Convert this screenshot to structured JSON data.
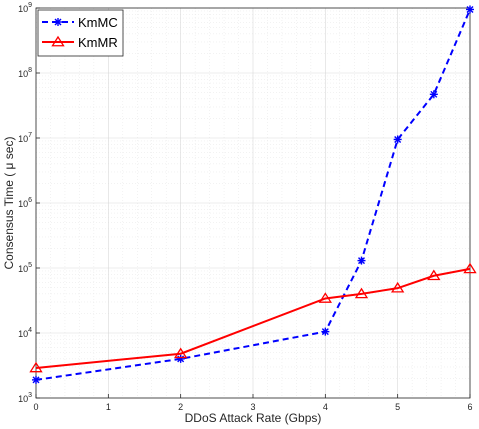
{
  "chart_data": {
    "type": "line",
    "xlabel": "DDoS Attack Rate (Gbps)",
    "ylabel": "Consensus Time ( μ sec)",
    "xlim": [
      0,
      6
    ],
    "ylim": [
      1000,
      1000000000
    ],
    "yscale": "log",
    "grid": true,
    "minor_grid": true,
    "legend_position": "top-left",
    "x_ticks": [
      "0",
      "1",
      "2",
      "3",
      "4",
      "5",
      "6"
    ],
    "y_ticks": [
      {
        "base": "10",
        "exp": "3"
      },
      {
        "base": "10",
        "exp": "4"
      },
      {
        "base": "10",
        "exp": "5"
      },
      {
        "base": "10",
        "exp": "6"
      },
      {
        "base": "10",
        "exp": "7"
      },
      {
        "base": "10",
        "exp": "8"
      },
      {
        "base": "10",
        "exp": "9"
      }
    ],
    "series": [
      {
        "name": "KmMC",
        "color": "#0000ff",
        "line_style": "dashed",
        "marker": "asterisk",
        "x": [
          0,
          2,
          4,
          4.5,
          5,
          5.5,
          6
        ],
        "y": [
          1900,
          4000,
          10500,
          130000,
          9500000,
          47000000,
          950000000
        ]
      },
      {
        "name": "KmMR",
        "color": "#ff0000",
        "line_style": "solid",
        "marker": "triangle",
        "x": [
          0,
          2,
          4,
          4.5,
          5,
          5.5,
          6
        ],
        "y": [
          2900,
          4800,
          34000,
          40000,
          49000,
          76000,
          97000
        ]
      }
    ]
  }
}
